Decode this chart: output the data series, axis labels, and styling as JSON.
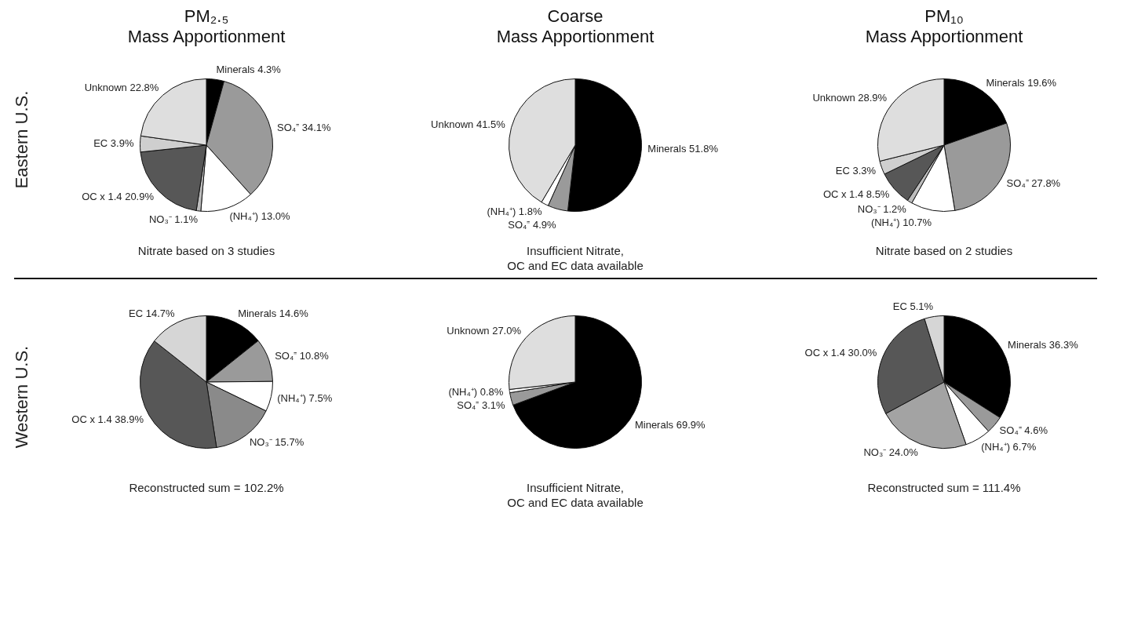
{
  "chart_data": [
    {
      "type": "pie",
      "title": "PM₂.₅\nMass Apportionment",
      "ylabel": "Eastern U.S.",
      "categories": [
        "Minerals",
        "SO₄⁼",
        "(NH₄⁺)",
        "NO₃⁻",
        "OC x 1.4",
        "EC",
        "Unknown"
      ],
      "values": [
        4.3,
        34.1,
        13.0,
        1.1,
        20.9,
        3.9,
        22.8
      ],
      "value_labels": [
        "4.3%",
        "34.1%",
        "13.0%",
        "1.1%",
        "20.9%",
        "3.9%",
        "22.8%"
      ],
      "colors": [
        "#000000",
        "#9a9a9a",
        "#ffffff",
        "#bdbdbd",
        "#575757",
        "#cfcfcf",
        "#dedede"
      ],
      "annotations": [
        "Nitrate based on 3 studies"
      ]
    },
    {
      "type": "pie",
      "title": "Coarse\nMass Apportionment",
      "categories": [
        "Minerals",
        "SO₄⁼",
        "(NH₄⁺)",
        "Unknown"
      ],
      "values": [
        51.8,
        4.9,
        1.8,
        41.5
      ],
      "value_labels": [
        "51.8%",
        "4.9%",
        "1.8%",
        "41.5%"
      ],
      "colors": [
        "#000000",
        "#9a9a9a",
        "#ffffff",
        "#dedede"
      ],
      "annotations": [
        "Insufficient Nitrate,\nOC and EC data available"
      ]
    },
    {
      "type": "pie",
      "title": "PM₁₀\nMass Apportionment",
      "categories": [
        "Minerals",
        "SO₄⁼",
        "(NH₄⁺)",
        "NO₃⁻",
        "OC x 1.4",
        "EC",
        "Unknown"
      ],
      "values": [
        19.6,
        27.8,
        10.7,
        1.2,
        8.5,
        3.3,
        28.9
      ],
      "value_labels": [
        "19.6%",
        "27.8%",
        "10.7%",
        "1.2%",
        "8.5%",
        "3.3%",
        "28.9%"
      ],
      "colors": [
        "#000000",
        "#9a9a9a",
        "#ffffff",
        "#bdbdbd",
        "#575757",
        "#cfcfcf",
        "#dedede"
      ],
      "annotations": [
        "Nitrate based on 2 studies"
      ]
    },
    {
      "type": "pie",
      "ylabel": "Western U.S.",
      "categories": [
        "Minerals",
        "SO₄⁼",
        "(NH₄⁺)",
        "NO₃⁻",
        "OC x 1.4",
        "EC"
      ],
      "values": [
        14.6,
        10.8,
        7.5,
        15.7,
        38.9,
        14.7
      ],
      "value_labels": [
        "14.6%",
        "10.8%",
        "7.5%",
        "15.7%",
        "38.9%",
        "14.7%"
      ],
      "colors": [
        "#000000",
        "#9a9a9a",
        "#ffffff",
        "#8a8a8a",
        "#575757",
        "#d6d6d6"
      ],
      "annotations": [
        "Reconstructed sum = 102.2%"
      ]
    },
    {
      "type": "pie",
      "categories": [
        "Minerals",
        "SO₄⁼",
        "(NH₄⁺)",
        "Unknown"
      ],
      "values": [
        69.9,
        3.1,
        0.8,
        27.0
      ],
      "value_labels": [
        "69.9%",
        "3.1%",
        "0.8%",
        "27.0%"
      ],
      "colors": [
        "#000000",
        "#9a9a9a",
        "#ffffff",
        "#dedede"
      ],
      "annotations": [
        "Insufficient Nitrate,\nOC and EC data available"
      ]
    },
    {
      "type": "pie",
      "categories": [
        "Minerals",
        "SO₄⁼",
        "(NH₄⁺)",
        "NO₃⁻",
        "OC x 1.4",
        "EC"
      ],
      "values": [
        36.3,
        4.6,
        6.7,
        24.0,
        30.0,
        5.1
      ],
      "value_labels": [
        "36.3%",
        "4.6%",
        "6.7%",
        "24.0%",
        "30.0%",
        "5.1%"
      ],
      "colors": [
        "#000000",
        "#9a9a9a",
        "#ffffff",
        "#a3a3a3",
        "#575757",
        "#d6d6d6"
      ],
      "annotations": [
        "Reconstructed sum = 111.4%"
      ]
    }
  ]
}
